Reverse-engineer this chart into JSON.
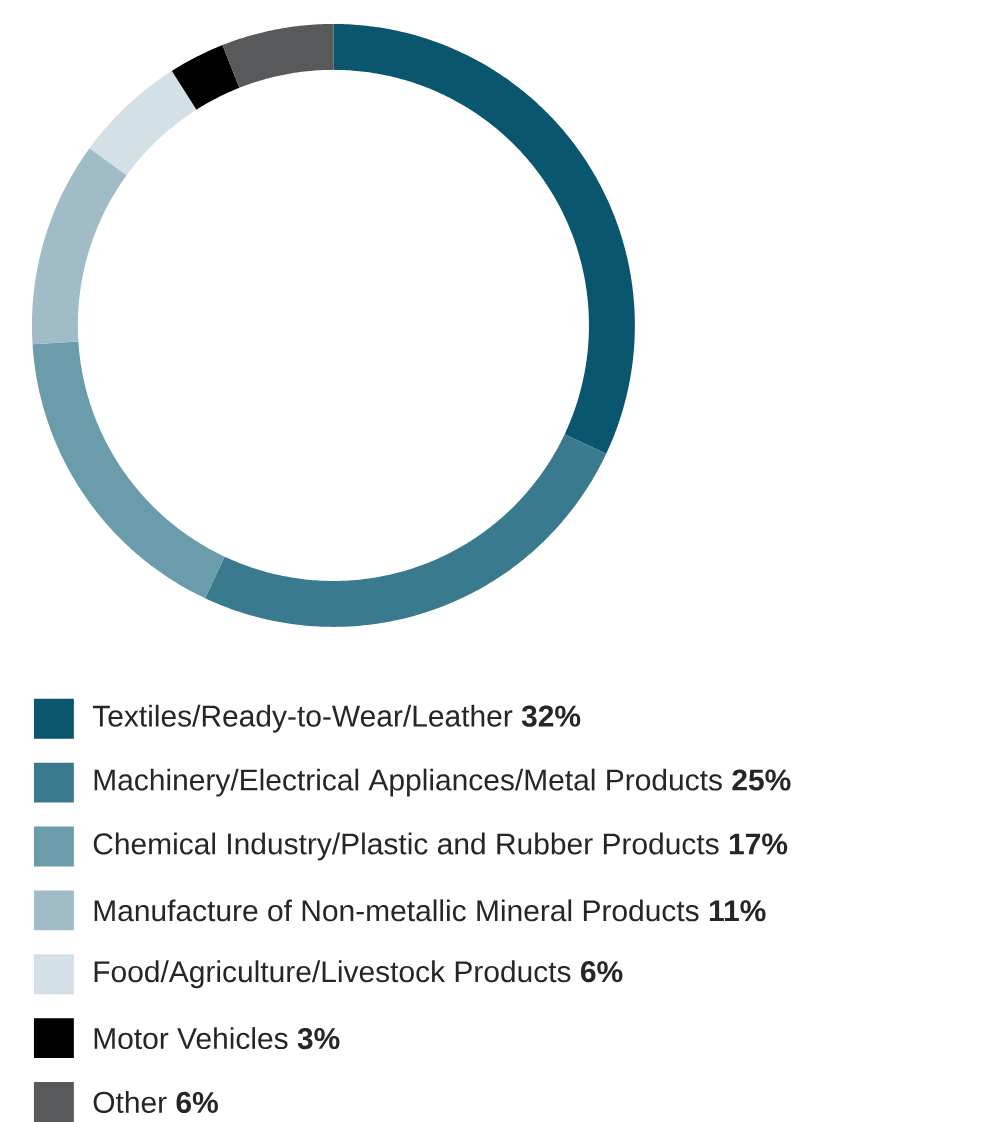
{
  "chart_data": {
    "type": "donut",
    "categories": [
      "Textiles/Ready-to-Wear/Leather",
      "Machinery/Electrical Appliances/Metal Products",
      "Chemical Industry/Plastic and Rubber Products",
      "Manufacture of Non-metallic Mineral Products",
      "Food/Agriculture/Livestock Products",
      "Motor Vehicles",
      "Other"
    ],
    "values": [
      32,
      25,
      17,
      11,
      6,
      3,
      6
    ],
    "value_labels": [
      "32%",
      "25%",
      "17%",
      "11%",
      "6%",
      "3%",
      "6%"
    ],
    "colors": [
      "#0a566f",
      "#3a7a8e",
      "#6b9cab",
      "#a0bcc7",
      "#d3e0e5",
      "#000000",
      "#58595b"
    ],
    "legend": "bottom"
  }
}
